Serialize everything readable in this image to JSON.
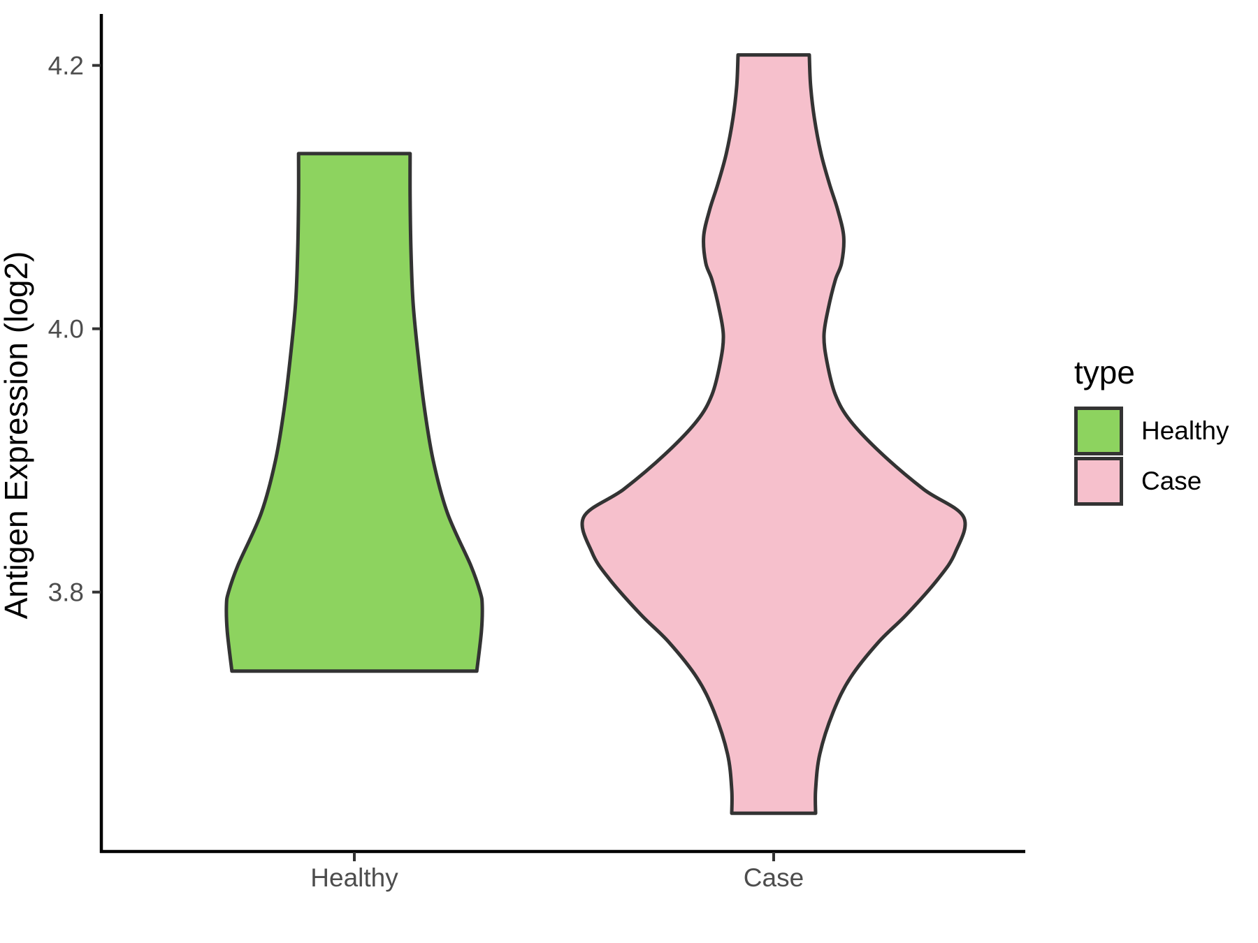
{
  "figure": {
    "background": "#ffffff",
    "y_axis": {
      "title": "Antigen Expression (log2)",
      "ticks": [
        {
          "label": "4.2",
          "value": 4.2
        },
        {
          "label": "4.0",
          "value": 4.0
        },
        {
          "label": "3.8",
          "value": 3.8
        }
      ]
    },
    "x_axis": {
      "title": "",
      "categories": [
        {
          "label": "Healthy",
          "position": 1
        },
        {
          "label": "Case",
          "position": 2
        }
      ]
    },
    "legend": {
      "title": "type",
      "items": [
        {
          "label": "Healthy",
          "color": "#8dd35f"
        },
        {
          "label": "Case",
          "color": "#f6c0cc"
        }
      ]
    },
    "colors": {
      "axis_line": "#000000",
      "tick_mark": "#333333",
      "tick_text": "#4d4d4d",
      "outline": "#333333"
    }
  },
  "chart_data": {
    "type": "violin",
    "title": "",
    "xlabel": "",
    "ylabel": "Antigen Expression (log2)",
    "categories": [
      "Healthy",
      "Case"
    ],
    "ylim": [
      3.603,
      4.238
    ],
    "xlim_units": [
      0.4,
      2.6
    ],
    "ytick_values": [
      4.2,
      4.0,
      3.8
    ],
    "grid": false,
    "legend_position": "right",
    "outline_color": "#333333",
    "series": [
      {
        "name": "Healthy",
        "fill": "#8dd35f",
        "center": 1,
        "range": [
          3.74,
          4.13
        ],
        "profile": [
          [
            4.133,
            0.133
          ],
          [
            4.1,
            0.133
          ],
          [
            4.06,
            0.135
          ],
          [
            4.02,
            0.14
          ],
          [
            3.98,
            0.152
          ],
          [
            3.94,
            0.167
          ],
          [
            3.9,
            0.188
          ],
          [
            3.86,
            0.222
          ],
          [
            3.82,
            0.278
          ],
          [
            3.8,
            0.3
          ],
          [
            3.79,
            0.305
          ],
          [
            3.77,
            0.303
          ],
          [
            3.74,
            0.292
          ]
        ]
      },
      {
        "name": "Case",
        "fill": "#f6c0cc",
        "center": 2,
        "range": [
          3.63,
          4.21
        ],
        "profile": [
          [
            4.208,
            0.085
          ],
          [
            4.185,
            0.088
          ],
          [
            4.16,
            0.097
          ],
          [
            4.133,
            0.113
          ],
          [
            4.11,
            0.133
          ],
          [
            4.09,
            0.153
          ],
          [
            4.07,
            0.167
          ],
          [
            4.05,
            0.162
          ],
          [
            4.037,
            0.147
          ],
          [
            4.015,
            0.13
          ],
          [
            3.995,
            0.12
          ],
          [
            3.975,
            0.127
          ],
          [
            3.95,
            0.147
          ],
          [
            3.93,
            0.183
          ],
          [
            3.905,
            0.258
          ],
          [
            3.878,
            0.358
          ],
          [
            3.857,
            0.453
          ],
          [
            3.83,
            0.433
          ],
          [
            3.81,
            0.392
          ],
          [
            3.783,
            0.317
          ],
          [
            3.762,
            0.25
          ],
          [
            3.735,
            0.183
          ],
          [
            3.709,
            0.142
          ],
          [
            3.677,
            0.11
          ],
          [
            3.65,
            0.1
          ],
          [
            3.632,
            0.1
          ]
        ]
      }
    ]
  }
}
